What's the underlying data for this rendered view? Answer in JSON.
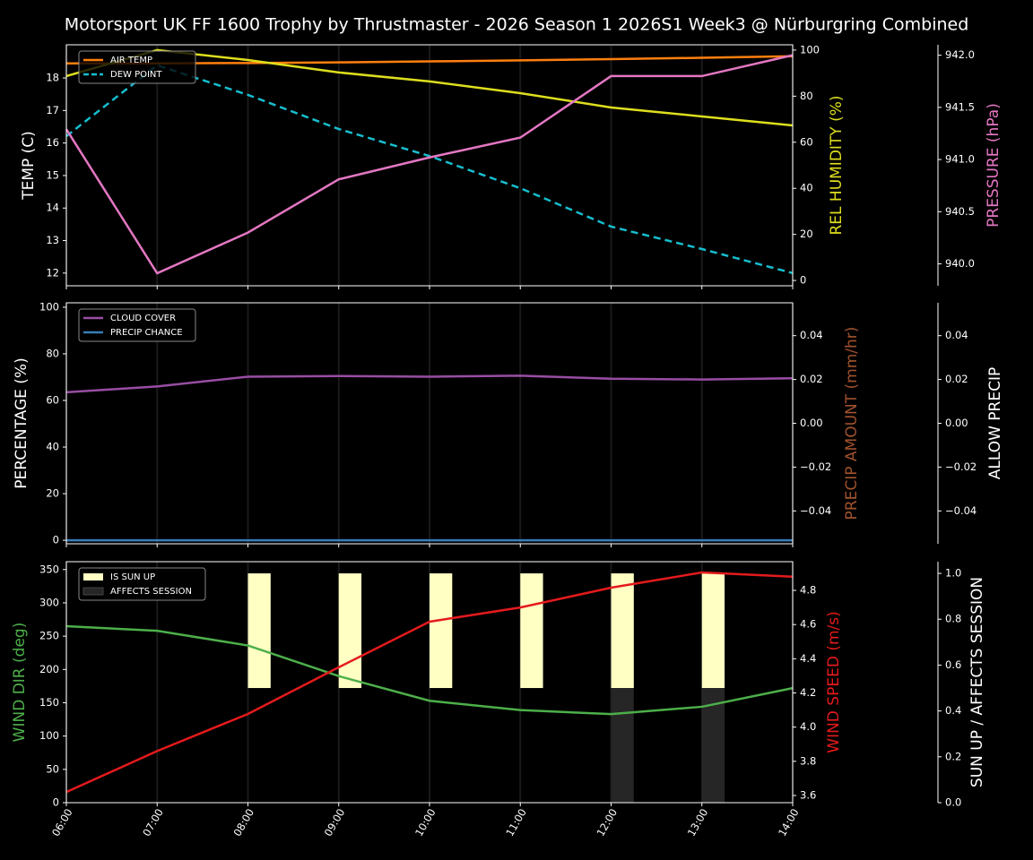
{
  "title": "Motorsport UK FF 1600 Trophy by Thrustmaster - 2026 Season 1 2026S1 Week3 @ Nürburgring Combined",
  "chart_data": [
    {
      "type": "line",
      "legend": "upper left",
      "ylabel": "TEMP (C)",
      "ylabel_color": "#ffffff",
      "ylim": [
        11.61,
        19.02
      ],
      "yticks": [
        12,
        13,
        14,
        15,
        16,
        17,
        18
      ],
      "y2label": "REL HUMIDITY (%)",
      "y2label_color": "#dede1e",
      "y2lim": [
        -2.3,
        102.3
      ],
      "y2ticks": [
        0,
        20,
        40,
        60,
        80,
        100
      ],
      "y3label": "PRESSURE (hPa)",
      "y3label_color": "#e377c2",
      "y3lim": [
        939.79,
        942.1
      ],
      "y3ticks": [
        {
          "value": 940,
          "label": "940.0"
        },
        940.5,
        {
          "value": 941,
          "label": "941.0"
        },
        941.5,
        {
          "value": 942,
          "label": "942.0"
        }
      ],
      "series": [
        {
          "name": "AIR TEMP",
          "color": "#ff7f0e",
          "axis": "y",
          "values": [
            18.45,
            18.45,
            18.46,
            18.48,
            18.51,
            18.54,
            18.58,
            18.62,
            18.67
          ]
        },
        {
          "name": "DEW POINT",
          "color": "#17becf",
          "axis": "y",
          "dash": true,
          "values": [
            16.21,
            18.39,
            17.48,
            16.43,
            15.6,
            14.61,
            13.43,
            12.74,
            12.0
          ]
        },
        {
          "color": "#dede1e",
          "axis": "y2",
          "values": [
            88.7,
            100,
            95.7,
            90.3,
            86.4,
            81.3,
            75.1,
            71.2,
            67.3
          ]
        },
        {
          "color": "#e377c2",
          "axis": "y3",
          "values": [
            941.29,
            939.91,
            940.3,
            940.81,
            941.02,
            941.21,
            941.8,
            941.8,
            942.0
          ]
        }
      ]
    },
    {
      "type": "line",
      "legend": "upper left",
      "ylabel": "PERCENTAGE (%)",
      "ylabel_color": "#ffffff",
      "ylim": [
        -1.5,
        101.9
      ],
      "yticks": [
        0,
        20,
        40,
        60,
        80,
        100
      ],
      "y2label": "PRECIP AMOUNT (mm/hr)",
      "y2label_color": "#a0522d",
      "y2lim": [
        -0.055,
        0.055
      ],
      "y2ticks": [
        {
          "value": -0.04,
          "label": "−0.04"
        },
        {
          "value": -0.02,
          "label": "−0.02"
        },
        {
          "value": 0,
          "label": "0.00"
        },
        0.02,
        0.04
      ],
      "y3label": "ALLOW PRECIP",
      "y3label_color": "#ffffff",
      "y3lim": [
        -0.055,
        0.055
      ],
      "y3ticks": [
        {
          "value": -0.04,
          "label": "−0.04"
        },
        {
          "value": -0.02,
          "label": "−0.02"
        },
        {
          "value": 0,
          "label": "0.00"
        },
        0.02,
        0.04
      ],
      "series": [
        {
          "name": "CLOUD COVER",
          "color": "#984ea3",
          "axis": "y",
          "values": [
            63.5,
            66,
            70.2,
            70.5,
            70.2,
            70.6,
            69.3,
            69.0,
            69.5
          ]
        },
        {
          "name": "PRECIP CHANCE",
          "color": "#377eb8",
          "axis": "y",
          "values": [
            0,
            0,
            0,
            0,
            0,
            0,
            0,
            0,
            0
          ]
        }
      ]
    },
    {
      "type": "line",
      "legend": "upper left",
      "categories": [
        "06:00",
        "07:00",
        "08:00",
        "09:00",
        "10:00",
        "11:00",
        "12:00",
        "13:00",
        "14:00"
      ],
      "ylabel": "WIND DIR (deg)",
      "ylabel_color": "#4daf4a",
      "ylim": [
        0,
        361.8
      ],
      "yticks": [
        0,
        50,
        100,
        150,
        200,
        250,
        300,
        350
      ],
      "y2label": "WIND SPEED (m/s)",
      "y2label_color": "#e41a1c",
      "y2lim": [
        3.558,
        4.968
      ],
      "y2ticks": [
        3.6,
        3.8,
        {
          "value": 4,
          "label": "4.0"
        },
        4.2,
        4.4,
        4.6,
        4.8
      ],
      "y3label": "SUN UP / AFFECTS SESSION",
      "y3label_color": "#ffffff",
      "y3lim": [
        0,
        1.051
      ],
      "y3ticks": [
        {
          "value": 0,
          "label": "0.0"
        },
        0.2,
        0.4,
        0.6,
        0.8,
        {
          "value": 1,
          "label": "1.0"
        }
      ],
      "series": [
        {
          "name": "IS SUN UP",
          "type": "bar",
          "color": "#ffffc4",
          "axis": "y3",
          "bottom": 0.5,
          "values": [
            0,
            0,
            0.5,
            0.5,
            0.5,
            0.5,
            0.5,
            0.5,
            0
          ]
        },
        {
          "name": "AFFECTS SESSION",
          "type": "bar",
          "color": "#262626",
          "axis": "y3",
          "values": [
            0,
            0,
            0,
            0,
            0,
            0,
            0.5,
            0.5,
            0
          ]
        },
        {
          "color": "#4daf4a",
          "axis": "y",
          "values": [
            265,
            258,
            236,
            190,
            153,
            139,
            133,
            144,
            172
          ]
        },
        {
          "color": "#e41a1c",
          "axis": "y2",
          "values": [
            3.62,
            3.86,
            4.077,
            4.35,
            4.617,
            4.7,
            4.816,
            4.905,
            4.88
          ]
        }
      ]
    }
  ]
}
